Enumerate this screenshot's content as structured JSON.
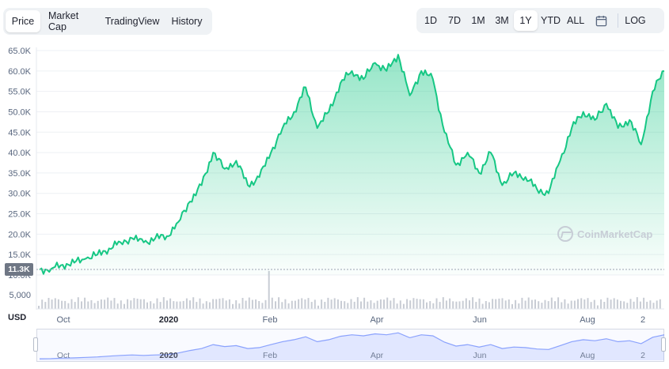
{
  "tabs": [
    {
      "label": "Price",
      "active": true
    },
    {
      "label": "Market Cap",
      "active": false
    },
    {
      "label": "TradingView",
      "active": false
    },
    {
      "label": "History",
      "active": false
    }
  ],
  "ranges": {
    "items": [
      {
        "label": "1D",
        "active": false
      },
      {
        "label": "7D",
        "active": false
      },
      {
        "label": "1M",
        "active": false
      },
      {
        "label": "3M",
        "active": false
      },
      {
        "label": "1Y",
        "active": true
      },
      {
        "label": "YTD",
        "active": false
      },
      {
        "label": "ALL",
        "active": false
      }
    ],
    "calendar_icon": "calendar-icon",
    "log_label": "LOG"
  },
  "current_price_badge": "11.3K",
  "currency_label": "USD",
  "watermark": "CoinMarketCap",
  "colors": {
    "line": "#16c784",
    "fill_top": "#16c784",
    "volume": "#c8ccd4",
    "navigator": "#3861fb"
  },
  "chart_data": {
    "type": "area",
    "title": "",
    "xlabel": "",
    "ylabel": "",
    "ylim": [
      10000,
      65000
    ],
    "y_ticks": [
      "65.0K",
      "60.0K",
      "55.0K",
      "50.0K",
      "45.0K",
      "40.0K",
      "35.0K",
      "30.0K",
      "25.0K",
      "20.0K",
      "15.0K",
      "10.0K"
    ],
    "y_tick_values": [
      65000,
      60000,
      55000,
      50000,
      45000,
      40000,
      35000,
      30000,
      25000,
      20000,
      15000,
      10000
    ],
    "volume_tick": "5,000",
    "x_ticks": [
      {
        "label": "Oct",
        "bold": false
      },
      {
        "label": "2020",
        "bold": true
      },
      {
        "label": "Feb",
        "bold": false
      },
      {
        "label": "Apr",
        "bold": false
      },
      {
        "label": "Jun",
        "bold": false
      },
      {
        "label": "Aug",
        "bold": false
      },
      {
        "label": "2",
        "bold": false
      }
    ],
    "series": [
      {
        "values": [
          11300,
          11500,
          12500,
          13000,
          14000,
          15000,
          16500,
          18000,
          19000,
          18000,
          19000,
          19500,
          23000,
          28000,
          32000,
          40000,
          36000,
          38000,
          32000,
          34000,
          40000,
          46000,
          50000,
          56000,
          46000,
          50000,
          57000,
          60000,
          58000,
          62000,
          60000,
          64000,
          54000,
          60000,
          58000,
          45000,
          37000,
          40000,
          35000,
          40000,
          32000,
          35000,
          34000,
          31000,
          30000,
          38000,
          46000,
          50000,
          48000,
          52000,
          46000,
          48000,
          42000,
          55000,
          60000
        ]
      }
    ]
  }
}
